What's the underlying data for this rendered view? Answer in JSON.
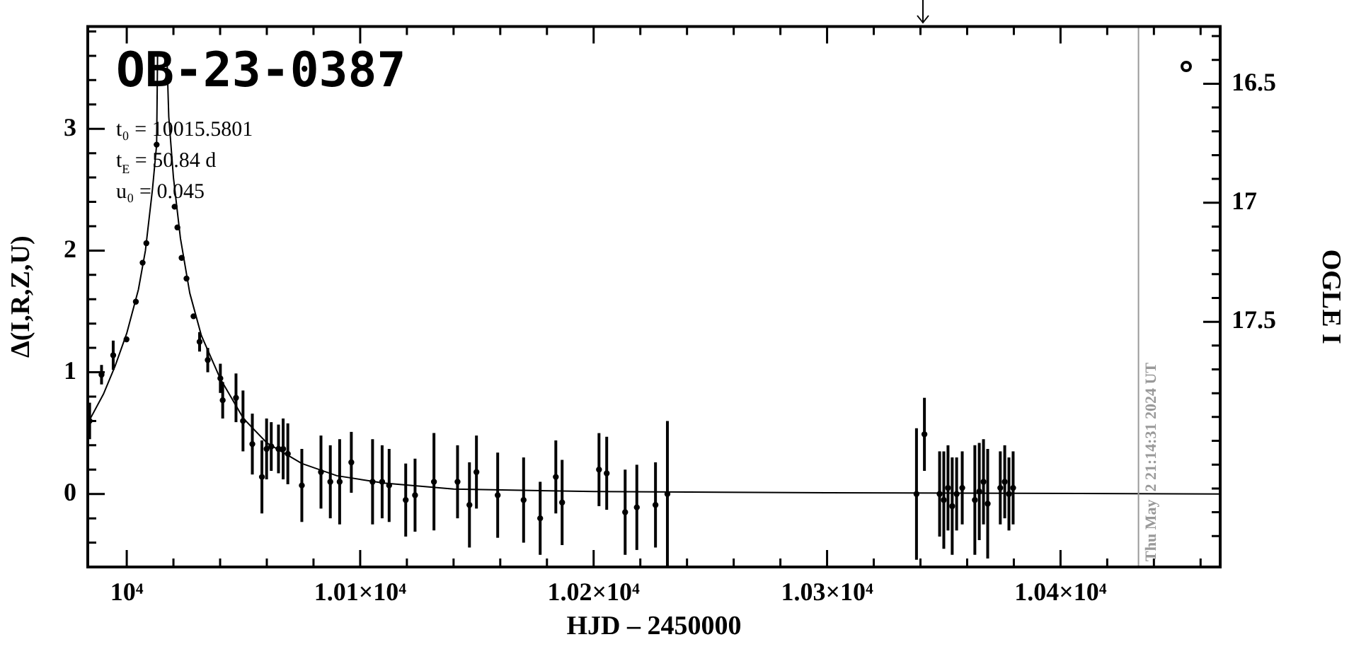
{
  "chart_data": {
    "type": "scatter",
    "title": "OB-23-0387",
    "xlabel": "HJD – 2450000",
    "ylabel": "Δ(I,R,Z,U)",
    "y2label": "OGLE I",
    "annotations": [
      "t₀ = 10015.5801",
      "t$_{E}$ = 50.84 d",
      "u₀ = 0.045",
      {
        "text": "Thu May  2 21:14:31 2024 UT",
        "x": 10433.4
      }
    ],
    "xlim": [
      9983.3,
      10468.4
    ],
    "xticks": [
      {
        "value": 10000,
        "label": "10⁴"
      },
      {
        "value": 10020,
        "label": null
      },
      {
        "value": 10040,
        "label": null
      },
      {
        "value": 10060,
        "label": null
      },
      {
        "value": 10080,
        "label": null
      },
      {
        "value": 10100,
        "label": "1.01×10⁴"
      },
      {
        "value": 10120,
        "label": null
      },
      {
        "value": 10140,
        "label": null
      },
      {
        "value": 10160,
        "label": null
      },
      {
        "value": 10180,
        "label": null
      },
      {
        "value": 10200,
        "label": "1.02×10⁴"
      },
      {
        "value": 10220,
        "label": null
      },
      {
        "value": 10240,
        "label": null
      },
      {
        "value": 10260,
        "label": null
      },
      {
        "value": 10280,
        "label": null
      },
      {
        "value": 10300,
        "label": "1.03×10⁴"
      },
      {
        "value": 10320,
        "label": null
      },
      {
        "value": 10340,
        "label": null
      },
      {
        "value": 10360,
        "label": null
      },
      {
        "value": 10380,
        "label": null
      },
      {
        "value": 10400,
        "label": "1.04×10⁴"
      },
      {
        "value": 10420,
        "label": null
      },
      {
        "value": 10440,
        "label": null
      },
      {
        "value": 10460,
        "label": null
      }
    ],
    "ylim": [
      -0.6,
      3.84
    ],
    "yticks": [
      {
        "value": -0.4,
        "label": null
      },
      {
        "value": -0.2,
        "label": null
      },
      0,
      {
        "value": 0.2,
        "label": null
      },
      {
        "value": 0.4,
        "label": null
      },
      {
        "value": 0.6,
        "label": null
      },
      {
        "value": 0.8,
        "label": null
      },
      1,
      {
        "value": 1.2,
        "label": null
      },
      {
        "value": 1.4,
        "label": null
      },
      {
        "value": 1.6,
        "label": null
      },
      {
        "value": 1.8,
        "label": null
      },
      2,
      {
        "value": 2.2,
        "label": null
      },
      {
        "value": 2.4,
        "label": null
      },
      {
        "value": 2.6,
        "label": null
      },
      {
        "value": 2.8,
        "label": null
      },
      3,
      {
        "value": 3.2,
        "label": null
      },
      {
        "value": 3.4,
        "label": null
      },
      {
        "value": 3.6,
        "label": null
      },
      {
        "value": 3.8,
        "label": null
      }
    ],
    "y2lim": [
      18.53,
      16.26
    ],
    "y2ticks": [
      {
        "value": 16.3,
        "label": null
      },
      {
        "value": 16.4,
        "label": null
      },
      16.5,
      {
        "value": 16.6,
        "label": null
      },
      {
        "value": 16.7,
        "label": null
      },
      {
        "value": 16.8,
        "label": null
      },
      {
        "value": 16.9,
        "label": null
      },
      17,
      {
        "value": 17.1,
        "label": null
      },
      {
        "value": 17.2,
        "label": null
      },
      {
        "value": 17.3,
        "label": null
      },
      {
        "value": 17.4,
        "label": null
      },
      17.5,
      {
        "value": 17.6,
        "label": null
      },
      {
        "value": 17.7,
        "label": null
      },
      {
        "value": 17.8,
        "label": null
      },
      {
        "value": 17.9,
        "label": null
      },
      {
        "value": 18,
        "label": null
      },
      {
        "value": 18.1,
        "label": null
      },
      {
        "value": 18.2,
        "label": null
      },
      {
        "value": 18.3,
        "label": null
      },
      {
        "value": 18.4,
        "label": null
      }
    ],
    "ref_lines": [
      {
        "axis": "x",
        "value": 10433.4,
        "color": "#999999"
      }
    ],
    "grid": false,
    "legend": false,
    "marker": "circle",
    "series": [
      {
        "type": "line",
        "color": "#000000",
        "marker": "none",
        "x": [
          9983.3,
          9990,
          9995,
          10000,
          10005,
          10008,
          10011,
          10012.8,
          10013.2,
          10015.6,
          10017.2,
          10018,
          10020,
          10023,
          10027,
          10032,
          10040,
          10050,
          10060,
          10075,
          10090,
          10110,
          10140,
          10200,
          10300,
          10468.4
        ],
        "values": [
          0.58,
          0.82,
          1.05,
          1.32,
          1.68,
          2.0,
          2.5,
          2.87,
          3.6,
          null,
          3.6,
          3.1,
          2.6,
          2.1,
          1.65,
          1.3,
          0.95,
          0.62,
          0.42,
          0.25,
          0.15,
          0.09,
          0.04,
          0.02,
          0.01,
          0
        ]
      },
      {
        "color": "#000000",
        "x": [
          9984.1,
          9989.2,
          9994.2,
          9999.9,
          10003.9,
          10006.8,
          10008.4,
          10012.8,
          10020.5,
          10021.7,
          10023.5,
          10025.6,
          10028.6,
          10031.2,
          10034.7,
          10040.1,
          10041.1,
          10046.8,
          10049.8,
          10053.8,
          10057.9,
          10059.9,
          10061.9,
          10065.0,
          10067.0,
          10069.0,
          10075.0,
          10083.2,
          10087.2,
          10091.2,
          10096.2,
          10105.3,
          10109.4,
          10112.4,
          10119.5,
          10123.5,
          10131.6,
          10141.7,
          10146.8,
          10149.8,
          10158.9,
          10170,
          10177.1,
          10183.8,
          10186.5,
          10202.3,
          10205.6,
          10213.5,
          10218.5,
          10226.5,
          10231.6,
          10338.3,
          10341.7,
          10348.2,
          10350,
          10351.8,
          10353.6,
          10355.5,
          10357.9,
          10363.3,
          10365.2,
          10367,
          10368.8,
          10374.2,
          10376.1,
          10377.9,
          10379.7
        ],
        "values": [
          0.6,
          0.98,
          1.14,
          1.27,
          1.58,
          1.9,
          2.06,
          2.87,
          2.36,
          2.19,
          1.94,
          1.77,
          1.46,
          1.25,
          1.1,
          0.95,
          0.77,
          0.79,
          0.6,
          0.41,
          0.14,
          0.37,
          0.39,
          0.37,
          0.37,
          0.33,
          0.07,
          0.18,
          0.1,
          0.1,
          0.26,
          0.1,
          0.1,
          0.07,
          -0.05,
          -0.01,
          0.1,
          0.1,
          -0.09,
          0.18,
          -0.01,
          -0.05,
          -0.2,
          0.14,
          -0.07,
          0.2,
          0.17,
          -0.15,
          -0.11,
          -0.09,
          0.0,
          0.0,
          0.49,
          0.0,
          -0.05,
          0.05,
          -0.1,
          0.0,
          0.05,
          -0.05,
          0.02,
          0.1,
          -0.08,
          0.05,
          0.1,
          0.0,
          0.05
        ],
        "errors": [
          0.15,
          0.08,
          0.12,
          null,
          null,
          null,
          null,
          null,
          null,
          null,
          null,
          null,
          null,
          0.08,
          0.1,
          0.12,
          0.15,
          0.2,
          0.25,
          0.25,
          0.3,
          0.25,
          0.2,
          0.2,
          0.25,
          0.25,
          0.3,
          0.3,
          0.3,
          0.35,
          0.25,
          0.35,
          0.3,
          0.3,
          0.3,
          0.3,
          0.4,
          0.3,
          0.35,
          0.3,
          0.35,
          0.35,
          0.3,
          0.3,
          0.35,
          0.3,
          0.3,
          0.35,
          0.35,
          0.35,
          0.6,
          0.54,
          0.3,
          0.35,
          0.4,
          0.35,
          0.4,
          0.3,
          0.3,
          0.45,
          0.4,
          0.35,
          0.45,
          0.3,
          0.3,
          0.3,
          0.3
        ]
      }
    ]
  }
}
